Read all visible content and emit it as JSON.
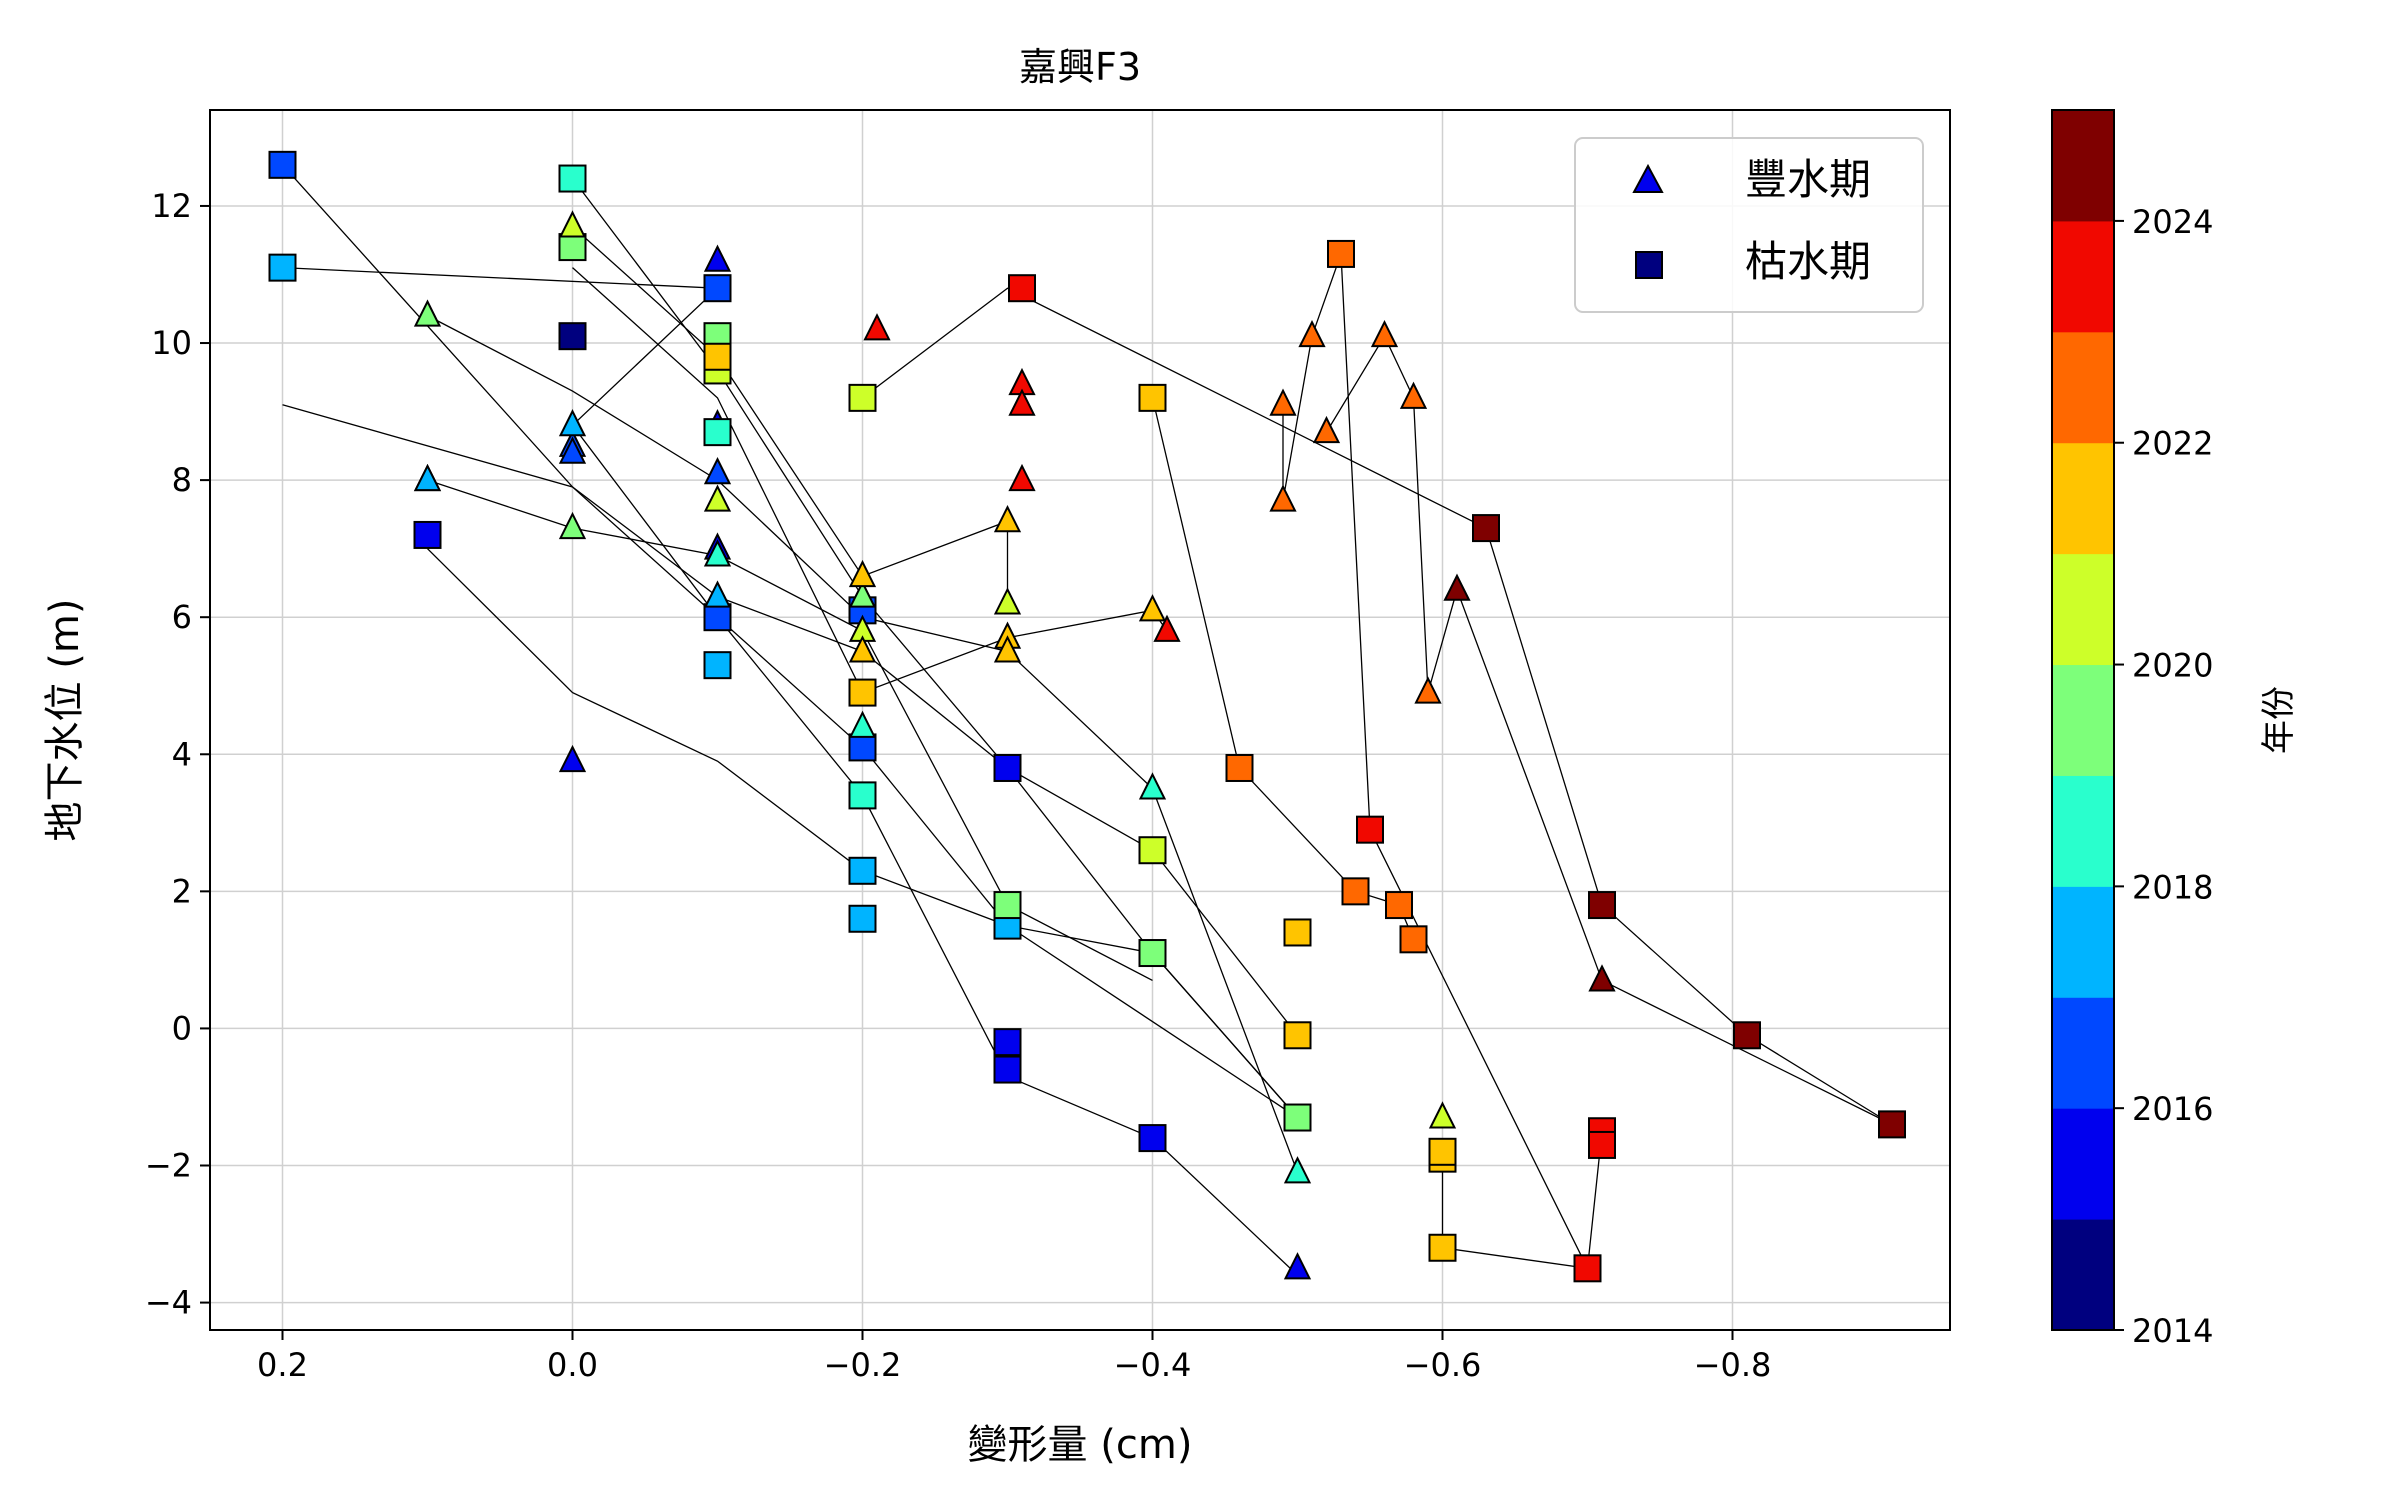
{
  "chart_data": {
    "type": "scatter",
    "title": "嘉興F3",
    "xlabel": "變形量 (cm)",
    "ylabel": "地下水位 (m)",
    "xlim": [
      0.25,
      -0.95
    ],
    "ylim": [
      -4.4,
      13.4
    ],
    "xticks": [
      0.2,
      0.0,
      -0.2,
      -0.4,
      -0.6,
      -0.8
    ],
    "xtick_labels": [
      "0.2",
      "0.0",
      "−0.2",
      "−0.4",
      "−0.6",
      "−0.8"
    ],
    "yticks": [
      12,
      10,
      8,
      6,
      4,
      2,
      0,
      -2,
      -4
    ],
    "ytick_labels": [
      "12",
      "10",
      "8",
      "6",
      "4",
      "2",
      "0",
      "−2",
      "−4"
    ],
    "grid": true,
    "legend": {
      "placement": "top-right",
      "entries": [
        {
          "label": "豐水期",
          "marker": "triangle"
        },
        {
          "label": "枯水期",
          "marker": "square"
        }
      ]
    },
    "colorbar": {
      "label": "年份",
      "range": [
        2014,
        2025
      ],
      "ticks": [
        2014,
        2016,
        2018,
        2020,
        2022,
        2024
      ],
      "tick_labels": [
        "2014",
        "2016",
        "2018",
        "2020",
        "2022",
        "2024"
      ],
      "colors": [
        "#00007f",
        "#0000ee",
        "#0048ff",
        "#00b4ff",
        "#29ffcd",
        "#7dff7a",
        "#cdff29",
        "#ffc400",
        "#ff6800",
        "#f10800",
        "#7f0000"
      ]
    },
    "series": [
      {
        "name": "2015",
        "x": [
          -0.1,
          0.0,
          -0.1,
          -0.3,
          -0.5,
          -0.4,
          -0.1,
          0.1,
          0.0,
          -0.3,
          0.1,
          -0.3
        ],
        "y": [
          7.0,
          3.9,
          8.8,
          3.8,
          -3.5,
          -1.6,
          11.2,
          7.2,
          10.1,
          -0.6,
          8.0,
          -0.2
        ],
        "markers": [
          "t",
          "t",
          "t",
          "s",
          "t",
          "s",
          "t",
          "s",
          "s",
          "s",
          "t",
          "s"
        ],
        "years": [
          2015.2,
          2015.3,
          2015.4,
          2015.5,
          2015.5,
          2015.4,
          2015.6,
          2015.7,
          2014.4,
          2015.4,
          2015.4,
          2015.5
        ]
      },
      {
        "name": "2016",
        "x": [
          0.2,
          -0.1,
          0.0,
          -0.2,
          -0.1,
          -0.2,
          0.0,
          -0.1
        ],
        "y": [
          12.6,
          8.1,
          8.5,
          4.1,
          10.8,
          6.1,
          8.4,
          6.0
        ],
        "markers": [
          "s",
          "t",
          "t",
          "s",
          "s",
          "s",
          "t",
          "s"
        ],
        "years": [
          2016.4,
          2016.3,
          2016.5,
          2016.5,
          2016.6,
          2016.7,
          2016.6,
          2016.4
        ]
      },
      {
        "name": "2017",
        "x": [
          0.2,
          0.1,
          0.0,
          -0.1,
          -0.2,
          -0.3,
          -0.1,
          -0.2
        ],
        "y": [
          11.1,
          8.0,
          8.8,
          5.3,
          2.3,
          1.5,
          6.3,
          1.6
        ],
        "markers": [
          "s",
          "t",
          "t",
          "s",
          "s",
          "s",
          "t",
          "s"
        ],
        "years": [
          2017.5,
          2017.4,
          2017.6,
          2017.6,
          2017.5,
          2017.5,
          2017.5,
          2017.6
        ]
      },
      {
        "name": "2018",
        "x": [
          0.0,
          -0.1,
          -0.2,
          -0.4,
          -0.1,
          -0.5,
          -0.2
        ],
        "y": [
          12.4,
          8.7,
          3.4,
          3.5,
          6.9,
          -2.1,
          4.4
        ],
        "markers": [
          "s",
          "s",
          "s",
          "t",
          "t",
          "t",
          "t"
        ],
        "years": [
          2018.6,
          2018.6,
          2018.7,
          2018.7,
          2018.5,
          2018.6,
          2018.5
        ]
      },
      {
        "name": "2019",
        "x": [
          0.0,
          -0.2,
          0.1,
          -0.3,
          -0.4,
          -0.5,
          0.0,
          -0.1
        ],
        "y": [
          7.3,
          6.3,
          10.4,
          1.8,
          1.1,
          -1.3,
          11.4,
          10.1
        ],
        "markers": [
          "t",
          "t",
          "t",
          "s",
          "s",
          "s",
          "s",
          "s"
        ],
        "years": [
          2019.4,
          2019.5,
          2019.6,
          2019.7,
          2019.6,
          2019.6,
          2019.5,
          2019.5
        ]
      },
      {
        "name": "2020",
        "x": [
          0.0,
          -0.1,
          -0.2,
          -0.3,
          -0.1,
          -0.2,
          -0.4,
          -0.6
        ],
        "y": [
          11.7,
          7.7,
          5.8,
          6.2,
          9.6,
          9.2,
          2.6,
          -1.3
        ],
        "markers": [
          "t",
          "t",
          "t",
          "t",
          "s",
          "s",
          "s",
          "t"
        ],
        "years": [
          2020.3,
          2020.5,
          2020.4,
          2020.6,
          2020.5,
          2020.7,
          2020.6,
          2020.5
        ]
      },
      {
        "name": "2021",
        "x": [
          -0.2,
          -0.3,
          -0.2,
          -0.5,
          -0.3,
          -0.6,
          -0.2,
          -0.5
        ],
        "y": [
          6.6,
          7.4,
          4.9,
          1.4,
          5.7,
          -1.9,
          5.5,
          -0.1
        ],
        "markers": [
          "t",
          "t",
          "s",
          "s",
          "t",
          "s",
          "t",
          "s"
        ],
        "years": [
          2021.4,
          2021.5,
          2021.4,
          2021.3,
          2021.6,
          2021.5,
          2021.5,
          2021.3
        ]
      },
      {
        "name": "2022",
        "x": [
          -0.1,
          -0.4,
          -0.6,
          -0.3,
          -0.4,
          -0.6
        ],
        "y": [
          9.8,
          9.2,
          -3.2,
          5.5,
          6.1,
          -1.8
        ],
        "markers": [
          "s",
          "s",
          "s",
          "t",
          "t",
          "s"
        ],
        "years": [
          2021.8,
          2021.8,
          2021.7,
          2021.7,
          2021.8,
          2021.6
        ]
      },
      {
        "name": "2023",
        "x": [
          -0.46,
          -0.54,
          -0.57,
          -0.58,
          -0.49,
          -0.49,
          -0.51,
          -0.53,
          -0.52,
          -0.56,
          -0.58,
          -0.59
        ],
        "y": [
          3.8,
          2.0,
          1.8,
          1.3,
          7.7,
          9.1,
          10.1,
          11.3,
          8.7,
          10.1,
          9.2,
          4.9
        ],
        "markers": [
          "s",
          "s",
          "s",
          "s",
          "t",
          "t",
          "t",
          "s",
          "t",
          "t",
          "t",
          "t"
        ],
        "years": [
          2022.7,
          2022.8,
          2022.7,
          2022.8,
          2022.8,
          2022.7,
          2022.8,
          2022.7,
          2022.8,
          2022.7,
          2022.9,
          2022.7
        ]
      },
      {
        "name": "2024",
        "x": [
          -0.21,
          -0.31,
          -0.31,
          -0.31,
          -0.31,
          -0.41,
          -0.55,
          -0.7,
          -0.71,
          -0.71
        ],
        "y": [
          10.2,
          10.8,
          9.4,
          9.1,
          8.0,
          5.8,
          2.9,
          -3.5,
          -1.5,
          -1.7
        ],
        "markers": [
          "t",
          "s",
          "t",
          "t",
          "t",
          "t",
          "s",
          "s",
          "s",
          "s"
        ],
        "years": [
          2023.6,
          2023.5,
          2023.6,
          2023.6,
          2023.5,
          2023.5,
          2023.6,
          2023.6,
          2023.7,
          2023.6
        ]
      },
      {
        "name": "2025",
        "x": [
          -0.63,
          -0.61,
          -0.71,
          -0.71,
          -0.81,
          -0.91
        ],
        "y": [
          7.3,
          6.4,
          1.8,
          0.7,
          -0.1,
          -1.4
        ],
        "markers": [
          "s",
          "t",
          "s",
          "t",
          "s",
          "s"
        ],
        "years": [
          2024.7,
          2024.8,
          2024.7,
          2024.7,
          2024.7,
          2024.8
        ]
      }
    ],
    "connections": [
      [
        [
          0.2,
          12.6
        ],
        [
          0.0,
          7.9
        ],
        [
          -0.2,
          4.1
        ],
        [
          -0.3,
          1.5
        ],
        [
          -0.4,
          1.1
        ],
        [
          -0.5,
          -1.3
        ]
      ],
      [
        [
          0.2,
          11.1
        ],
        [
          -0.1,
          10.8
        ],
        [
          0.0,
          8.8
        ],
        [
          -0.1,
          6.0
        ],
        [
          -0.2,
          3.4
        ],
        [
          -0.3,
          -0.7
        ],
        [
          -0.4,
          -1.6
        ],
        [
          -0.5,
          -3.6
        ]
      ],
      [
        [
          0.2,
          9.1
        ],
        [
          0.0,
          7.9
        ],
        [
          -0.1,
          6.3
        ],
        [
          -0.2,
          5.5
        ],
        [
          -0.3,
          3.8
        ],
        [
          -0.4,
          1.1
        ],
        [
          -0.5,
          -1.3
        ]
      ],
      [
        [
          0.1,
          10.4
        ],
        [
          0.0,
          9.3
        ],
        [
          -0.1,
          8.0
        ],
        [
          -0.2,
          6.0
        ],
        [
          -0.3,
          5.5
        ],
        [
          -0.4,
          3.5
        ],
        [
          -0.5,
          -2.1
        ]
      ],
      [
        [
          0.1,
          8.0
        ],
        [
          0.0,
          7.3
        ],
        [
          -0.1,
          6.9
        ],
        [
          -0.2,
          5.8
        ],
        [
          -0.3,
          1.8
        ],
        [
          -0.4,
          0.7
        ]
      ],
      [
        [
          0.1,
          7.0
        ],
        [
          0.0,
          4.9
        ],
        [
          -0.1,
          3.9
        ],
        [
          -0.2,
          2.3
        ],
        [
          -0.3,
          1.5
        ],
        [
          -0.5,
          -1.3
        ]
      ],
      [
        [
          0.0,
          12.4
        ],
        [
          -0.1,
          9.6
        ],
        [
          -0.2,
          6.3
        ],
        [
          -0.3,
          3.8
        ],
        [
          -0.4,
          2.6
        ],
        [
          -0.5,
          -0.1
        ]
      ],
      [
        [
          0.0,
          11.7
        ],
        [
          -0.1,
          9.8
        ],
        [
          -0.2,
          6.6
        ],
        [
          -0.3,
          7.4
        ],
        [
          -0.3,
          6.2
        ]
      ],
      [
        [
          0.0,
          11.1
        ],
        [
          -0.1,
          9.2
        ],
        [
          -0.2,
          4.9
        ],
        [
          -0.3,
          5.7
        ],
        [
          -0.4,
          6.1
        ],
        [
          -0.41,
          5.8
        ]
      ],
      [
        [
          -0.2,
          9.2
        ],
        [
          -0.3,
          10.8
        ],
        [
          -0.63,
          7.3
        ],
        [
          -0.71,
          1.8
        ],
        [
          -0.81,
          -0.1
        ],
        [
          -0.91,
          -1.4
        ]
      ],
      [
        [
          -0.4,
          9.2
        ],
        [
          -0.46,
          3.8
        ],
        [
          -0.54,
          2.0
        ],
        [
          -0.57,
          1.8
        ],
        [
          -0.58,
          1.3
        ]
      ],
      [
        [
          -0.49,
          9.1
        ],
        [
          -0.49,
          7.7
        ],
        [
          -0.51,
          10.1
        ],
        [
          -0.53,
          11.3
        ],
        [
          -0.55,
          2.9
        ],
        [
          -0.7,
          -3.5
        ]
      ],
      [
        [
          -0.52,
          8.7
        ],
        [
          -0.56,
          10.1
        ],
        [
          -0.58,
          9.2
        ],
        [
          -0.59,
          4.9
        ],
        [
          -0.61,
          6.4
        ],
        [
          -0.71,
          0.7
        ],
        [
          -0.91,
          -1.4
        ]
      ],
      [
        [
          -0.6,
          -1.9
        ],
        [
          -0.6,
          -3.2
        ],
        [
          -0.7,
          -3.5
        ],
        [
          -0.71,
          -1.5
        ]
      ]
    ]
  }
}
